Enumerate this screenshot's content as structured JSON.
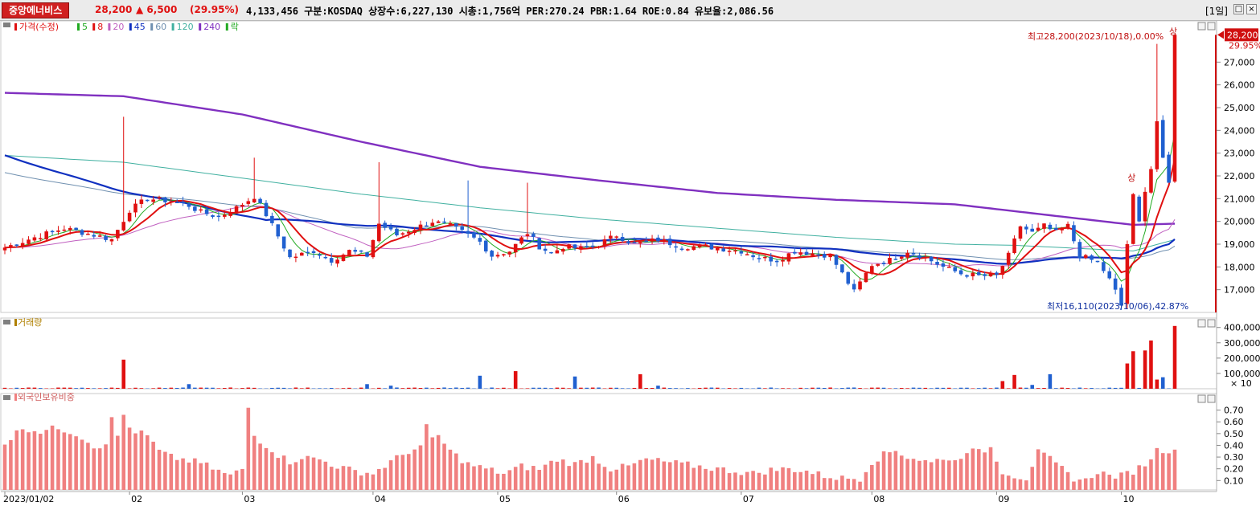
{
  "header": {
    "stock_name": "중앙에너비스",
    "price": "28,200",
    "change": "▲ 6,500",
    "change_pct": "(29.95%)",
    "stats": "4,133,456  구분:KOSDAQ 상장수:6,227,130 시총:1,756억 PER:270.24 PBR:1.64 ROE:0.84 유보율:2,086.56",
    "period": "[1일]",
    "buttons": [
      "□",
      "×"
    ]
  },
  "colors": {
    "up": "#e01010",
    "down": "#2060d0",
    "ma5": "#22aa22",
    "ma8": "#e01010",
    "ma20": "#c060c0",
    "ma45": "#1030c0",
    "ma60": "#7090b0",
    "ma120": "#40b0a0",
    "ma240": "#8030c0",
    "foreign": "#f08080"
  },
  "chart_data": [
    {
      "type": "candlestick",
      "legend": [
        {
          "label": "가격(수정)",
          "color": "#e01010"
        },
        {
          "label": "5",
          "color": "#22aa22"
        },
        {
          "label": "8",
          "color": "#e01010"
        },
        {
          "label": "20",
          "color": "#c060c0"
        },
        {
          "label": "45",
          "color": "#1030c0"
        },
        {
          "label": "60",
          "color": "#7090b0"
        },
        {
          "label": "120",
          "color": "#40b0a0"
        },
        {
          "label": "240",
          "color": "#8030c0"
        },
        {
          "label": "락",
          "color": "#22aa22"
        }
      ],
      "ylim": [
        16000,
        28600
      ],
      "yticks": [
        17000,
        18000,
        19000,
        20000,
        21000,
        22000,
        23000,
        24000,
        25000,
        26000,
        27000
      ],
      "ytick_labels": [
        "17,000",
        "18,000",
        "19,000",
        "20,000",
        "21,000",
        "22,000",
        "23,000",
        "24,000",
        "25,000",
        "26,000",
        "27,000"
      ],
      "last_price": 28200,
      "last_price_label": "28,200",
      "last_pct_label": "29.95%",
      "annotations": {
        "high": "최고28,200(2023/10/18),0.00%",
        "low": "최저16,110(2023/10/06),42.87%",
        "limit_up": "상"
      },
      "x_labels": [
        "2023/01/02",
        "02",
        "03",
        "04",
        "05",
        "06",
        "07",
        "08",
        "09",
        "10"
      ],
      "month_start_index": [
        0,
        21,
        40,
        62,
        83,
        103,
        124,
        146,
        167,
        188
      ],
      "anchors": [
        [
          0,
          18850
        ],
        [
          5,
          19300
        ],
        [
          10,
          19700
        ],
        [
          15,
          19400
        ],
        [
          18,
          19200
        ],
        [
          21,
          20500
        ],
        [
          24,
          21000
        ],
        [
          28,
          20900
        ],
        [
          31,
          20700
        ],
        [
          33,
          20400
        ],
        [
          36,
          20200
        ],
        [
          39,
          20600
        ],
        [
          42,
          21100
        ],
        [
          44,
          20300
        ],
        [
          48,
          18400
        ],
        [
          52,
          18700
        ],
        [
          55,
          18300
        ],
        [
          58,
          18700
        ],
        [
          61,
          18500
        ],
        [
          63,
          19900
        ],
        [
          66,
          19400
        ],
        [
          69,
          19700
        ],
        [
          72,
          20000
        ],
        [
          75,
          19800
        ],
        [
          78,
          19400
        ],
        [
          80,
          19100
        ],
        [
          82,
          18500
        ],
        [
          85,
          18700
        ],
        [
          88,
          19500
        ],
        [
          90,
          18900
        ],
        [
          92,
          18600
        ],
        [
          94,
          18900
        ],
        [
          97,
          18800
        ],
        [
          100,
          19000
        ],
        [
          103,
          19400
        ],
        [
          106,
          19000
        ],
        [
          110,
          19200
        ],
        [
          114,
          18900
        ],
        [
          118,
          18900
        ],
        [
          121,
          18800
        ],
        [
          124,
          18700
        ],
        [
          127,
          18400
        ],
        [
          130,
          18300
        ],
        [
          133,
          18700
        ],
        [
          136,
          18600
        ],
        [
          139,
          18500
        ],
        [
          141,
          17700
        ],
        [
          143,
          16900
        ],
        [
          146,
          18100
        ],
        [
          149,
          18300
        ],
        [
          152,
          18700
        ],
        [
          155,
          18400
        ],
        [
          158,
          18000
        ],
        [
          161,
          17700
        ],
        [
          164,
          17600
        ],
        [
          167,
          17600
        ],
        [
          169,
          18500
        ],
        [
          171,
          19800
        ],
        [
          173,
          19500
        ],
        [
          175,
          19800
        ],
        [
          177,
          19500
        ],
        [
          179,
          19800
        ],
        [
          181,
          18500
        ],
        [
          184,
          18200
        ],
        [
          186,
          17500
        ],
        [
          187,
          17000
        ],
        [
          188,
          16300
        ],
        [
          189,
          19000
        ],
        [
          190,
          21200
        ],
        [
          191,
          20000
        ],
        [
          192,
          21300
        ],
        [
          193,
          22300
        ],
        [
          194,
          24400
        ],
        [
          195,
          22800
        ],
        [
          196,
          21700
        ],
        [
          197,
          28200
        ]
      ],
      "ma_start": {
        "ma120": 22900,
        "ma240": 25650,
        "ma60": 22200,
        "ma45": 23000
      },
      "ma240_anchors": [
        [
          0,
          25650
        ],
        [
          20,
          25500
        ],
        [
          40,
          24700
        ],
        [
          60,
          23500
        ],
        [
          80,
          22400
        ],
        [
          100,
          21800
        ],
        [
          120,
          21250
        ],
        [
          140,
          20950
        ],
        [
          160,
          20750
        ],
        [
          170,
          20450
        ],
        [
          190,
          19850
        ],
        [
          197,
          19900
        ]
      ],
      "ma120_anchors": [
        [
          0,
          22900
        ],
        [
          20,
          22600
        ],
        [
          40,
          21900
        ],
        [
          60,
          21200
        ],
        [
          80,
          20600
        ],
        [
          100,
          20100
        ],
        [
          120,
          19700
        ],
        [
          140,
          19300
        ],
        [
          160,
          19000
        ],
        [
          170,
          18950
        ],
        [
          190,
          18700
        ],
        [
          197,
          19200
        ]
      ]
    },
    {
      "type": "bar",
      "title": "거래량",
      "ylim": [
        0,
        430000
      ],
      "yticks": [
        100000,
        200000,
        300000,
        400000
      ],
      "ytick_labels": [
        "100,000",
        "200,000",
        "300,000",
        "400,000"
      ],
      "unit_label": "× 10",
      "spikes": [
        [
          20,
          190000
        ],
        [
          31,
          30000
        ],
        [
          61,
          30000
        ],
        [
          65,
          20000
        ],
        [
          80,
          85000
        ],
        [
          86,
          115000
        ],
        [
          96,
          80000
        ],
        [
          107,
          95000
        ],
        [
          110,
          20000
        ],
        [
          168,
          50000
        ],
        [
          170,
          90000
        ],
        [
          173,
          25000
        ],
        [
          176,
          95000
        ],
        [
          189,
          165000
        ],
        [
          190,
          245000
        ],
        [
          192,
          250000
        ],
        [
          193,
          315000
        ],
        [
          194,
          60000
        ],
        [
          195,
          75000
        ],
        [
          197,
          410000
        ]
      ]
    },
    {
      "type": "bar",
      "title": "외국인보유비중",
      "ylim": [
        0.02,
        0.8
      ],
      "yticks": [
        0.1,
        0.2,
        0.3,
        0.4,
        0.5,
        0.6,
        0.7
      ],
      "ytick_labels": [
        "0.10",
        "0.20",
        "0.30",
        "0.40",
        "0.50",
        "0.60",
        "0.70"
      ],
      "anchors": [
        [
          0,
          0.42
        ],
        [
          3,
          0.55
        ],
        [
          6,
          0.52
        ],
        [
          9,
          0.55
        ],
        [
          12,
          0.5
        ],
        [
          15,
          0.4
        ],
        [
          18,
          0.38
        ],
        [
          20,
          0.58
        ],
        [
          22,
          0.52
        ],
        [
          24,
          0.48
        ],
        [
          26,
          0.35
        ],
        [
          28,
          0.3
        ],
        [
          30,
          0.28
        ],
        [
          33,
          0.25
        ],
        [
          36,
          0.18
        ],
        [
          38,
          0.14
        ],
        [
          40,
          0.2
        ],
        [
          42,
          0.48
        ],
        [
          44,
          0.4
        ],
        [
          46,
          0.32
        ],
        [
          48,
          0.26
        ],
        [
          50,
          0.3
        ],
        [
          53,
          0.28
        ],
        [
          56,
          0.22
        ],
        [
          59,
          0.18
        ],
        [
          62,
          0.16
        ],
        [
          65,
          0.26
        ],
        [
          68,
          0.35
        ],
        [
          71,
          0.4
        ],
        [
          73,
          0.48
        ],
        [
          75,
          0.35
        ],
        [
          78,
          0.24
        ],
        [
          81,
          0.2
        ],
        [
          84,
          0.16
        ],
        [
          87,
          0.22
        ],
        [
          90,
          0.2
        ],
        [
          93,
          0.28
        ],
        [
          96,
          0.24
        ],
        [
          99,
          0.3
        ],
        [
          102,
          0.2
        ],
        [
          105,
          0.22
        ],
        [
          108,
          0.28
        ],
        [
          111,
          0.26
        ],
        [
          114,
          0.24
        ],
        [
          117,
          0.22
        ],
        [
          120,
          0.2
        ],
        [
          123,
          0.18
        ],
        [
          126,
          0.16
        ],
        [
          129,
          0.19
        ],
        [
          132,
          0.2
        ],
        [
          135,
          0.18
        ],
        [
          138,
          0.14
        ],
        [
          141,
          0.12
        ],
        [
          144,
          0.12
        ],
        [
          146,
          0.26
        ],
        [
          148,
          0.32
        ],
        [
          150,
          0.36
        ],
        [
          152,
          0.3
        ],
        [
          154,
          0.28
        ],
        [
          156,
          0.25
        ],
        [
          158,
          0.3
        ],
        [
          160,
          0.26
        ],
        [
          162,
          0.36
        ],
        [
          164,
          0.34
        ],
        [
          166,
          0.38
        ],
        [
          168,
          0.18
        ],
        [
          170,
          0.14
        ],
        [
          172,
          0.12
        ],
        [
          174,
          0.34
        ],
        [
          176,
          0.28
        ],
        [
          178,
          0.2
        ],
        [
          180,
          0.12
        ],
        [
          182,
          0.1
        ],
        [
          184,
          0.18
        ],
        [
          186,
          0.14
        ],
        [
          188,
          0.14
        ],
        [
          190,
          0.18
        ],
        [
          192,
          0.24
        ],
        [
          194,
          0.36
        ],
        [
          196,
          0.36
        ],
        [
          197,
          0.38
        ]
      ],
      "spikes": [
        [
          18,
          0.64
        ],
        [
          20,
          0.66
        ],
        [
          41,
          0.72
        ],
        [
          71,
          0.58
        ]
      ]
    }
  ]
}
